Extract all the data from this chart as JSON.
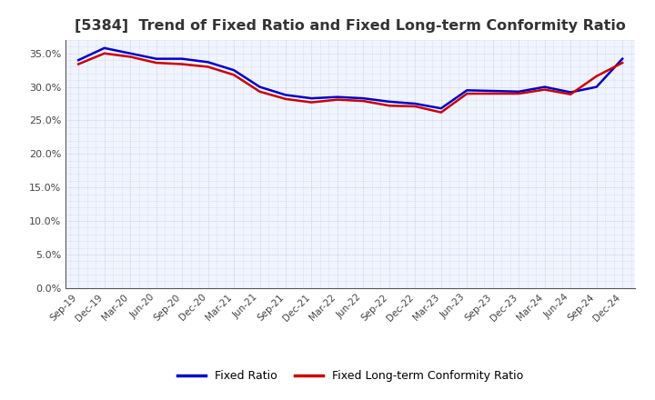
{
  "title": "[5384]  Trend of Fixed Ratio and Fixed Long-term Conformity Ratio",
  "x_labels": [
    "Sep-19",
    "Dec-19",
    "Mar-20",
    "Jun-20",
    "Sep-20",
    "Dec-20",
    "Mar-21",
    "Jun-21",
    "Sep-21",
    "Dec-21",
    "Mar-22",
    "Jun-22",
    "Sep-22",
    "Dec-22",
    "Mar-23",
    "Jun-23",
    "Sep-23",
    "Dec-23",
    "Mar-24",
    "Jun-24",
    "Sep-24",
    "Dec-24"
  ],
  "fixed_ratio": [
    0.34,
    0.358,
    0.35,
    0.342,
    0.342,
    0.337,
    0.325,
    0.3,
    0.288,
    0.283,
    0.285,
    0.283,
    0.278,
    0.275,
    0.268,
    0.295,
    0.294,
    0.293,
    0.3,
    0.292,
    0.3,
    0.342
  ],
  "fixed_lt_ratio": [
    0.334,
    0.35,
    0.345,
    0.336,
    0.334,
    0.33,
    0.318,
    0.293,
    0.282,
    0.277,
    0.281,
    0.279,
    0.272,
    0.271,
    0.262,
    0.29,
    0.29,
    0.29,
    0.296,
    0.289,
    0.316,
    0.336
  ],
  "fixed_ratio_color": "#0000cc",
  "fixed_lt_ratio_color": "#cc0000",
  "line_width": 1.8,
  "ylim": [
    0.0,
    0.37
  ],
  "yticks": [
    0.0,
    0.05,
    0.1,
    0.15,
    0.2,
    0.25,
    0.3,
    0.35
  ],
  "plot_bg_color": "#f0f4ff",
  "fig_bg_color": "#ffffff",
  "grid_color": "#8899bb",
  "title_color": "#333333",
  "legend_fixed_ratio": "Fixed Ratio",
  "legend_fixed_lt_ratio": "Fixed Long-term Conformity Ratio",
  "title_fontsize": 11.5
}
